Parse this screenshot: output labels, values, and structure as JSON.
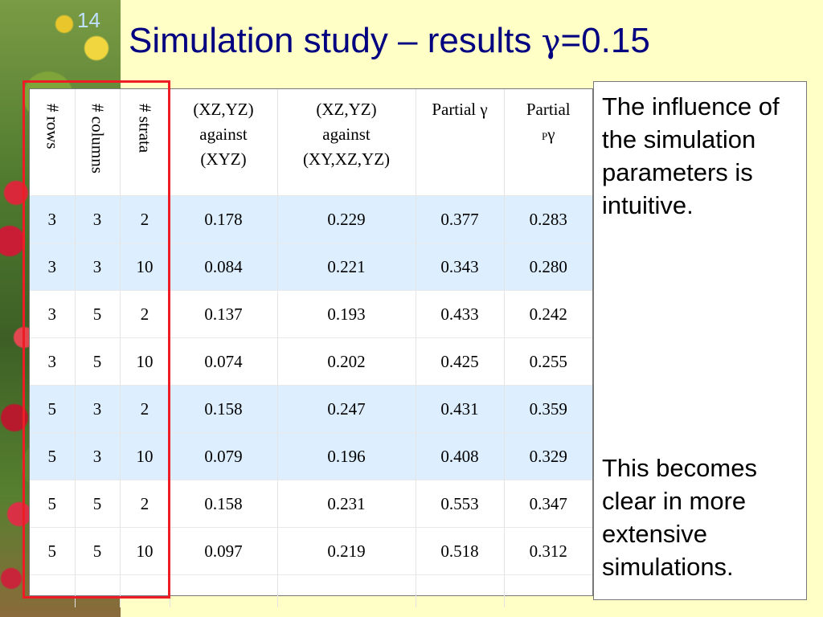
{
  "slide": {
    "number": "14",
    "title_main": "Simulation study – results ",
    "title_gamma": "γ",
    "title_value": "=0.15"
  },
  "table": {
    "headers": {
      "rows": "# rows",
      "columns": "# columns",
      "strata": "# strata",
      "col4": [
        "(XZ,YZ)",
        "against",
        "(XYZ)"
      ],
      "col5": [
        "(XZ,YZ)",
        "against",
        "(XY,XZ,YZ)"
      ],
      "col6": "Partial γ",
      "col7_line1": "Partial",
      "col7_sup": "P",
      "col7_gamma": "γ"
    },
    "rows": [
      [
        "3",
        "3",
        "2",
        "0.178",
        "0.229",
        "0.377",
        "0.283"
      ],
      [
        "3",
        "3",
        "10",
        "0.084",
        "0.221",
        "0.343",
        "0.280"
      ],
      [
        "3",
        "5",
        "2",
        "0.137",
        "0.193",
        "0.433",
        "0.242"
      ],
      [
        "3",
        "5",
        "10",
        "0.074",
        "0.202",
        "0.425",
        "0.255"
      ],
      [
        "5",
        "3",
        "2",
        "0.158",
        "0.247",
        "0.431",
        "0.359"
      ],
      [
        "5",
        "3",
        "10",
        "0.079",
        "0.196",
        "0.408",
        "0.329"
      ],
      [
        "5",
        "5",
        "2",
        "0.158",
        "0.231",
        "0.553",
        "0.347"
      ],
      [
        "5",
        "5",
        "10",
        "0.097",
        "0.219",
        "0.518",
        "0.312"
      ]
    ]
  },
  "note": {
    "first": "The influence of the simulation parameters is intuitive.",
    "second": "This becomes clear in more extensive simulations."
  },
  "colors": {
    "highlight_row": "#ddeeff",
    "title": "#000080",
    "red_box": "#ee1c24",
    "background": "#ffffc6"
  }
}
